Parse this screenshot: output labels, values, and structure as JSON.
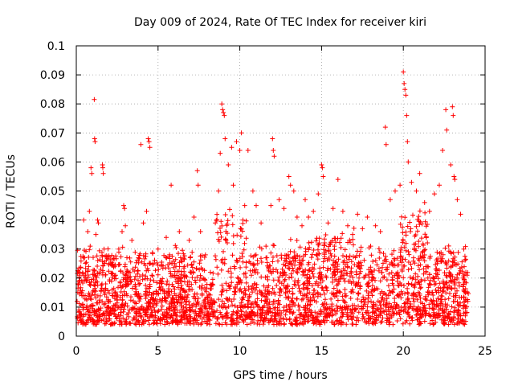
{
  "chart_data": {
    "type": "scatter",
    "title": "Day 009 of 2024, Rate Of TEC Index for receiver kiri",
    "xlabel": "GPS time / hours",
    "ylabel": "ROTI / TECUs",
    "xlim": [
      0,
      25
    ],
    "ylim": [
      0,
      0.1
    ],
    "x_ticks": [
      0,
      5,
      10,
      15,
      20,
      25
    ],
    "x_tick_labels": [
      "0",
      "5",
      "10",
      "15",
      "20",
      "25"
    ],
    "y_ticks": [
      0,
      0.01,
      0.02,
      0.03,
      0.04,
      0.05,
      0.06,
      0.07,
      0.08,
      0.09,
      0.1
    ],
    "y_tick_labels": [
      "0",
      "0.01",
      "0.02",
      "0.03",
      "0.04",
      "0.05",
      "0.06",
      "0.07",
      "0.08",
      "0.09",
      "0.1"
    ],
    "grid": true,
    "marker": "+",
    "series_color": "#ff0000",
    "series": [
      {
        "name": "ROTI",
        "points": [
          [
            0.05,
            0.012
          ],
          [
            0.1,
            0.018
          ],
          [
            0.15,
            0.009
          ],
          [
            0.2,
            0.021
          ],
          [
            0.3,
            0.015
          ],
          [
            0.4,
            0.011
          ],
          [
            0.45,
            0.04
          ],
          [
            0.5,
            0.027
          ],
          [
            0.6,
            0.019
          ],
          [
            0.7,
            0.036
          ],
          [
            0.75,
            0.024
          ],
          [
            0.8,
            0.043
          ],
          [
            0.85,
            0.031
          ],
          [
            0.9,
            0.058
          ],
          [
            0.95,
            0.056
          ],
          [
            1.1,
            0.0815
          ],
          [
            1.12,
            0.068
          ],
          [
            1.15,
            0.067
          ],
          [
            1.2,
            0.035
          ],
          [
            1.3,
            0.04
          ],
          [
            1.35,
            0.039
          ],
          [
            1.5,
            0.023
          ],
          [
            1.6,
            0.059
          ],
          [
            1.62,
            0.058
          ],
          [
            1.65,
            0.056
          ],
          [
            1.7,
            0.03
          ],
          [
            1.8,
            0.018
          ],
          [
            2.0,
            0.025
          ],
          [
            2.2,
            0.014
          ],
          [
            2.4,
            0.021
          ],
          [
            2.6,
            0.03
          ],
          [
            2.8,
            0.036
          ],
          [
            2.9,
            0.045
          ],
          [
            2.95,
            0.044
          ],
          [
            3.0,
            0.038
          ],
          [
            3.2,
            0.022
          ],
          [
            3.4,
            0.033
          ],
          [
            3.6,
            0.017
          ],
          [
            3.8,
            0.027
          ],
          [
            3.95,
            0.066
          ],
          [
            4.1,
            0.039
          ],
          [
            4.3,
            0.043
          ],
          [
            4.4,
            0.068
          ],
          [
            4.45,
            0.067
          ],
          [
            4.5,
            0.065
          ],
          [
            4.7,
            0.025
          ],
          [
            5.0,
            0.03
          ],
          [
            5.2,
            0.019
          ],
          [
            5.5,
            0.034
          ],
          [
            5.7,
            0.028
          ],
          [
            5.8,
            0.052
          ],
          [
            6.0,
            0.021
          ],
          [
            6.3,
            0.036
          ],
          [
            6.6,
            0.024
          ],
          [
            6.9,
            0.033
          ],
          [
            7.2,
            0.041
          ],
          [
            7.4,
            0.057
          ],
          [
            7.45,
            0.052
          ],
          [
            7.6,
            0.036
          ],
          [
            7.9,
            0.028
          ],
          [
            8.2,
            0.022
          ],
          [
            8.5,
            0.039
          ],
          [
            8.7,
            0.05
          ],
          [
            8.8,
            0.063
          ],
          [
            8.9,
            0.08
          ],
          [
            8.95,
            0.078
          ],
          [
            9.0,
            0.077
          ],
          [
            9.05,
            0.076
          ],
          [
            9.1,
            0.068
          ],
          [
            9.3,
            0.059
          ],
          [
            9.5,
            0.065
          ],
          [
            9.6,
            0.052
          ],
          [
            9.8,
            0.067
          ],
          [
            10.0,
            0.064
          ],
          [
            10.1,
            0.07
          ],
          [
            10.3,
            0.045
          ],
          [
            10.5,
            0.064
          ],
          [
            10.8,
            0.05
          ],
          [
            11.0,
            0.045
          ],
          [
            11.3,
            0.039
          ],
          [
            11.6,
            0.031
          ],
          [
            11.9,
            0.045
          ],
          [
            12.0,
            0.068
          ],
          [
            12.05,
            0.064
          ],
          [
            12.1,
            0.062
          ],
          [
            12.4,
            0.047
          ],
          [
            12.7,
            0.044
          ],
          [
            13.0,
            0.055
          ],
          [
            13.1,
            0.052
          ],
          [
            13.3,
            0.05
          ],
          [
            13.5,
            0.041
          ],
          [
            13.8,
            0.038
          ],
          [
            14.0,
            0.047
          ],
          [
            14.2,
            0.041
          ],
          [
            14.5,
            0.043
          ],
          [
            14.8,
            0.049
          ],
          [
            15.0,
            0.059
          ],
          [
            15.05,
            0.058
          ],
          [
            15.1,
            0.055
          ],
          [
            15.4,
            0.039
          ],
          [
            15.7,
            0.044
          ],
          [
            16.0,
            0.054
          ],
          [
            16.3,
            0.043
          ],
          [
            16.6,
            0.038
          ],
          [
            16.9,
            0.035
          ],
          [
            17.2,
            0.042
          ],
          [
            17.5,
            0.037
          ],
          [
            17.8,
            0.041
          ],
          [
            18.0,
            0.031
          ],
          [
            18.3,
            0.038
          ],
          [
            18.6,
            0.036
          ],
          [
            18.9,
            0.072
          ],
          [
            18.95,
            0.066
          ],
          [
            19.2,
            0.047
          ],
          [
            19.5,
            0.05
          ],
          [
            19.8,
            0.052
          ],
          [
            20.0,
            0.091
          ],
          [
            20.05,
            0.087
          ],
          [
            20.1,
            0.085
          ],
          [
            20.15,
            0.083
          ],
          [
            20.2,
            0.076
          ],
          [
            20.25,
            0.067
          ],
          [
            20.3,
            0.06
          ],
          [
            20.5,
            0.053
          ],
          [
            20.8,
            0.05
          ],
          [
            21.0,
            0.056
          ],
          [
            21.3,
            0.046
          ],
          [
            21.6,
            0.043
          ],
          [
            21.9,
            0.049
          ],
          [
            22.2,
            0.052
          ],
          [
            22.4,
            0.064
          ],
          [
            22.6,
            0.078
          ],
          [
            22.65,
            0.071
          ],
          [
            22.9,
            0.059
          ],
          [
            23.0,
            0.079
          ],
          [
            23.05,
            0.076
          ],
          [
            23.1,
            0.055
          ],
          [
            23.15,
            0.054
          ],
          [
            23.3,
            0.047
          ],
          [
            23.5,
            0.042
          ],
          [
            23.7,
            0.03
          ],
          [
            23.9,
            0.021
          ],
          [
            23.95,
            0.012
          ]
        ]
      }
    ]
  }
}
